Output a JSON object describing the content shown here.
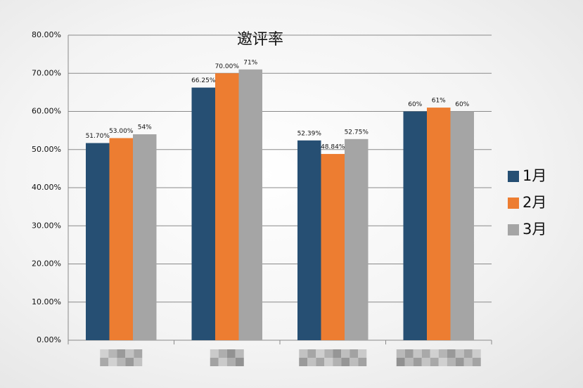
{
  "chart_data": {
    "type": "bar",
    "title": "邀评率",
    "categories": [
      null,
      null,
      null,
      null
    ],
    "series": [
      {
        "name": "1月",
        "color": "#264f73",
        "values": [
          51.7,
          66.25,
          52.39,
          60
        ],
        "value_labels": [
          "51.70%",
          "66.25%",
          "52.39%",
          "60%"
        ]
      },
      {
        "name": "2月",
        "color": "#ed7d31",
        "values": [
          53.0,
          70.0,
          48.84,
          61
        ],
        "value_labels": [
          "53.00%",
          "70.00%",
          "48.84%",
          "61%"
        ]
      },
      {
        "name": "3月",
        "color": "#a5a5a5",
        "values": [
          54,
          71,
          52.75,
          60
        ],
        "value_labels": [
          "54%",
          "71%",
          "52.75%",
          "60%"
        ]
      }
    ],
    "ylim": [
      0,
      80
    ],
    "yticks": [
      {
        "value": 0,
        "label": "0.00%"
      },
      {
        "value": 10,
        "label": "10.00%"
      },
      {
        "value": 20,
        "label": "20.00%"
      },
      {
        "value": 30,
        "label": "30.00%"
      },
      {
        "value": 40,
        "label": "40.00%"
      },
      {
        "value": 50,
        "label": "50.00%"
      },
      {
        "value": 60,
        "label": "60.00%"
      },
      {
        "value": 70,
        "label": "70.00%"
      },
      {
        "value": 80,
        "label": "80.00%"
      }
    ],
    "grid": true,
    "legend": "right"
  }
}
